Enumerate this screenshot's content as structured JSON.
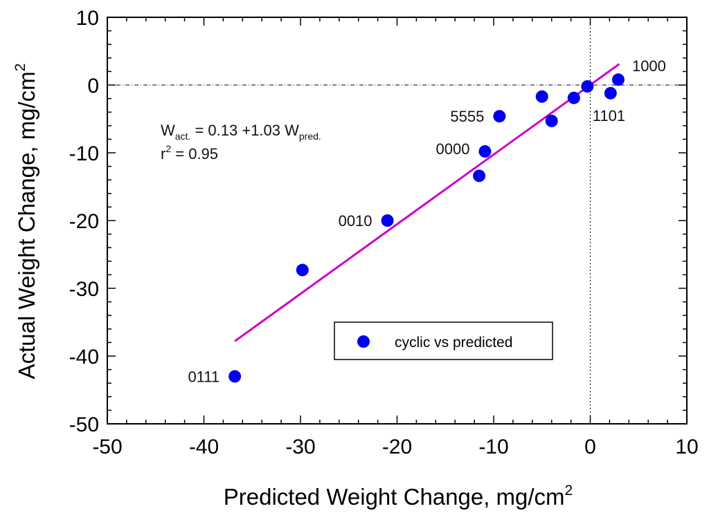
{
  "chart_data": {
    "type": "scatter",
    "xlabel": "Predicted Weight Change, mg/cm",
    "xlabel_sup": "2",
    "ylabel": "Actual Weight Change, mg/cm",
    "ylabel_sup": "2",
    "xlim": [
      -50,
      10
    ],
    "ylim": [
      -50,
      10
    ],
    "xticks": [
      -50,
      -40,
      -30,
      -20,
      -10,
      0,
      10
    ],
    "yticks": [
      -50,
      -40,
      -30,
      -20,
      -10,
      0,
      10
    ],
    "x_tick_labels": [
      "-50",
      "-40",
      "-30",
      "-20",
      "-10",
      "0",
      "10"
    ],
    "y_tick_labels": [
      "-50",
      "-40",
      "-30",
      "-20",
      "-10",
      "0",
      "10"
    ],
    "series": [
      {
        "name": "cyclic vs predicted",
        "color": "#0000ee",
        "points": [
          {
            "x": -36.8,
            "y": -43.0
          },
          {
            "x": -29.8,
            "y": -27.3
          },
          {
            "x": -21.0,
            "y": -20.0
          },
          {
            "x": -11.5,
            "y": -13.4
          },
          {
            "x": -10.9,
            "y": -9.8
          },
          {
            "x": -9.4,
            "y": -4.6
          },
          {
            "x": -5.0,
            "y": -1.7
          },
          {
            "x": -4.0,
            "y": -5.3
          },
          {
            "x": -1.7,
            "y": -1.9
          },
          {
            "x": -0.3,
            "y": -0.2
          },
          {
            "x": 2.1,
            "y": -1.2
          },
          {
            "x": 2.9,
            "y": 0.8
          }
        ]
      }
    ],
    "fit_line": {
      "color": "#cc00cc",
      "x_start": -36.8,
      "y_start": -37.8,
      "x_end": 3.0,
      "y_end": 3.1
    },
    "reference_lines": [
      {
        "orientation": "horizontal",
        "value": 0
      },
      {
        "orientation": "vertical",
        "value": 0
      }
    ],
    "point_labels": [
      {
        "text": "0111",
        "x": -36.8,
        "y": -43.0
      },
      {
        "text": "0010",
        "x": -21.0,
        "y": -20.0
      },
      {
        "text": "0000",
        "x": -10.9,
        "y": -9.8
      },
      {
        "text": "5555",
        "x": -9.4,
        "y": -4.6
      },
      {
        "text": "1101",
        "x": 2.1,
        "y": -1.2
      },
      {
        "text": "1000",
        "x": 2.9,
        "y": 0.8
      }
    ],
    "equation": {
      "line1_main": "W",
      "line1_sub1": "act.",
      "line1_mid": " = 0.13 +1.03 W",
      "line1_sub2": "pred.",
      "line2_main": "r",
      "line2_sup": "2",
      "line2_rest": "  = 0.95"
    },
    "legend": {
      "label": "cyclic vs predicted",
      "placement": "bottom-center"
    }
  }
}
